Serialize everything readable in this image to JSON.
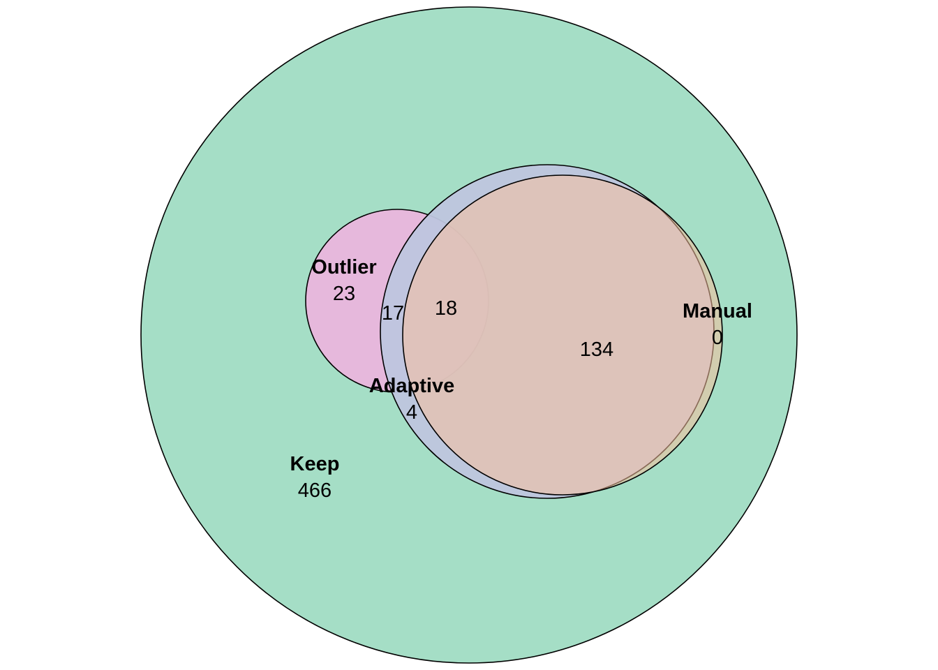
{
  "sets": [
    {
      "key": "keep",
      "name": "Keep",
      "color": "#a5dec6",
      "opacity": 1.0,
      "only_count": "466"
    },
    {
      "key": "adaptive",
      "name": "Adaptive",
      "color": "#bec5de",
      "opacity": 0.95,
      "only_count": "4"
    },
    {
      "key": "outlier",
      "name": "Outlier",
      "color": "#f4b0e0",
      "opacity": 0.82,
      "only_count": "23"
    },
    {
      "key": "manual",
      "name": "Manual",
      "color": "#f7c09c",
      "opacity": 0.55,
      "only_count": "0"
    }
  ],
  "intersections": [
    {
      "key": "keep-outlier-adaptive",
      "sets": [
        "Keep",
        "Outlier",
        "Adaptive"
      ],
      "count": "17"
    },
    {
      "key": "keep-outlier-adaptive-manual",
      "sets": [
        "Keep",
        "Outlier",
        "Adaptive",
        "Manual"
      ],
      "count": "18"
    },
    {
      "key": "keep-adaptive-manual",
      "sets": [
        "Keep",
        "Adaptive",
        "Manual"
      ],
      "count": "134"
    }
  ]
}
